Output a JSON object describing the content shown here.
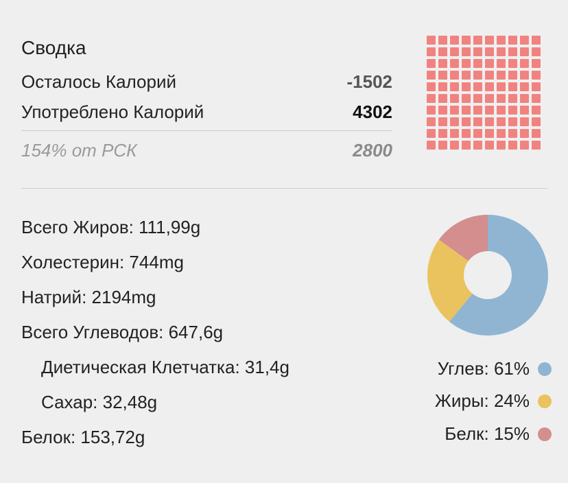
{
  "summary": {
    "title": "Сводка",
    "remaining_label": "Осталось Калорий",
    "remaining_value": "-1502",
    "consumed_label": "Употреблено Калорий",
    "consumed_value": "4302",
    "rsk_label": "154% от РСК",
    "rsk_value": "2800"
  },
  "waffle": {
    "color": "#f08380",
    "filled_cells": 100
  },
  "nutrients": [
    {
      "text": "Всего Жиров: 111,99g"
    },
    {
      "text": "Холестерин: 744mg"
    },
    {
      "text": "Натрий: 2194mg"
    },
    {
      "text": "Всего Углеводов: 647,6g"
    },
    {
      "text": "Диетическая Клетчатка: 31,4g"
    },
    {
      "text": "Сахар: 32,48g"
    },
    {
      "text": "Белок: 153,72g"
    }
  ],
  "chart_data": {
    "type": "pie",
    "donut": true,
    "series": [
      {
        "name": "Углев",
        "value": 61,
        "color": "#8fb5d3"
      },
      {
        "name": "Жиры",
        "value": 24,
        "color": "#eac35f"
      },
      {
        "name": "Белк",
        "value": 15,
        "color": "#d38e8d"
      }
    ],
    "legend_placement": "bottom-right"
  },
  "legend": [
    {
      "label": "Углев: 61%",
      "color": "#8fb5d3"
    },
    {
      "label": "Жиры: 24%",
      "color": "#eac35f"
    },
    {
      "label": "Белк: 15%",
      "color": "#d38e8d"
    }
  ]
}
